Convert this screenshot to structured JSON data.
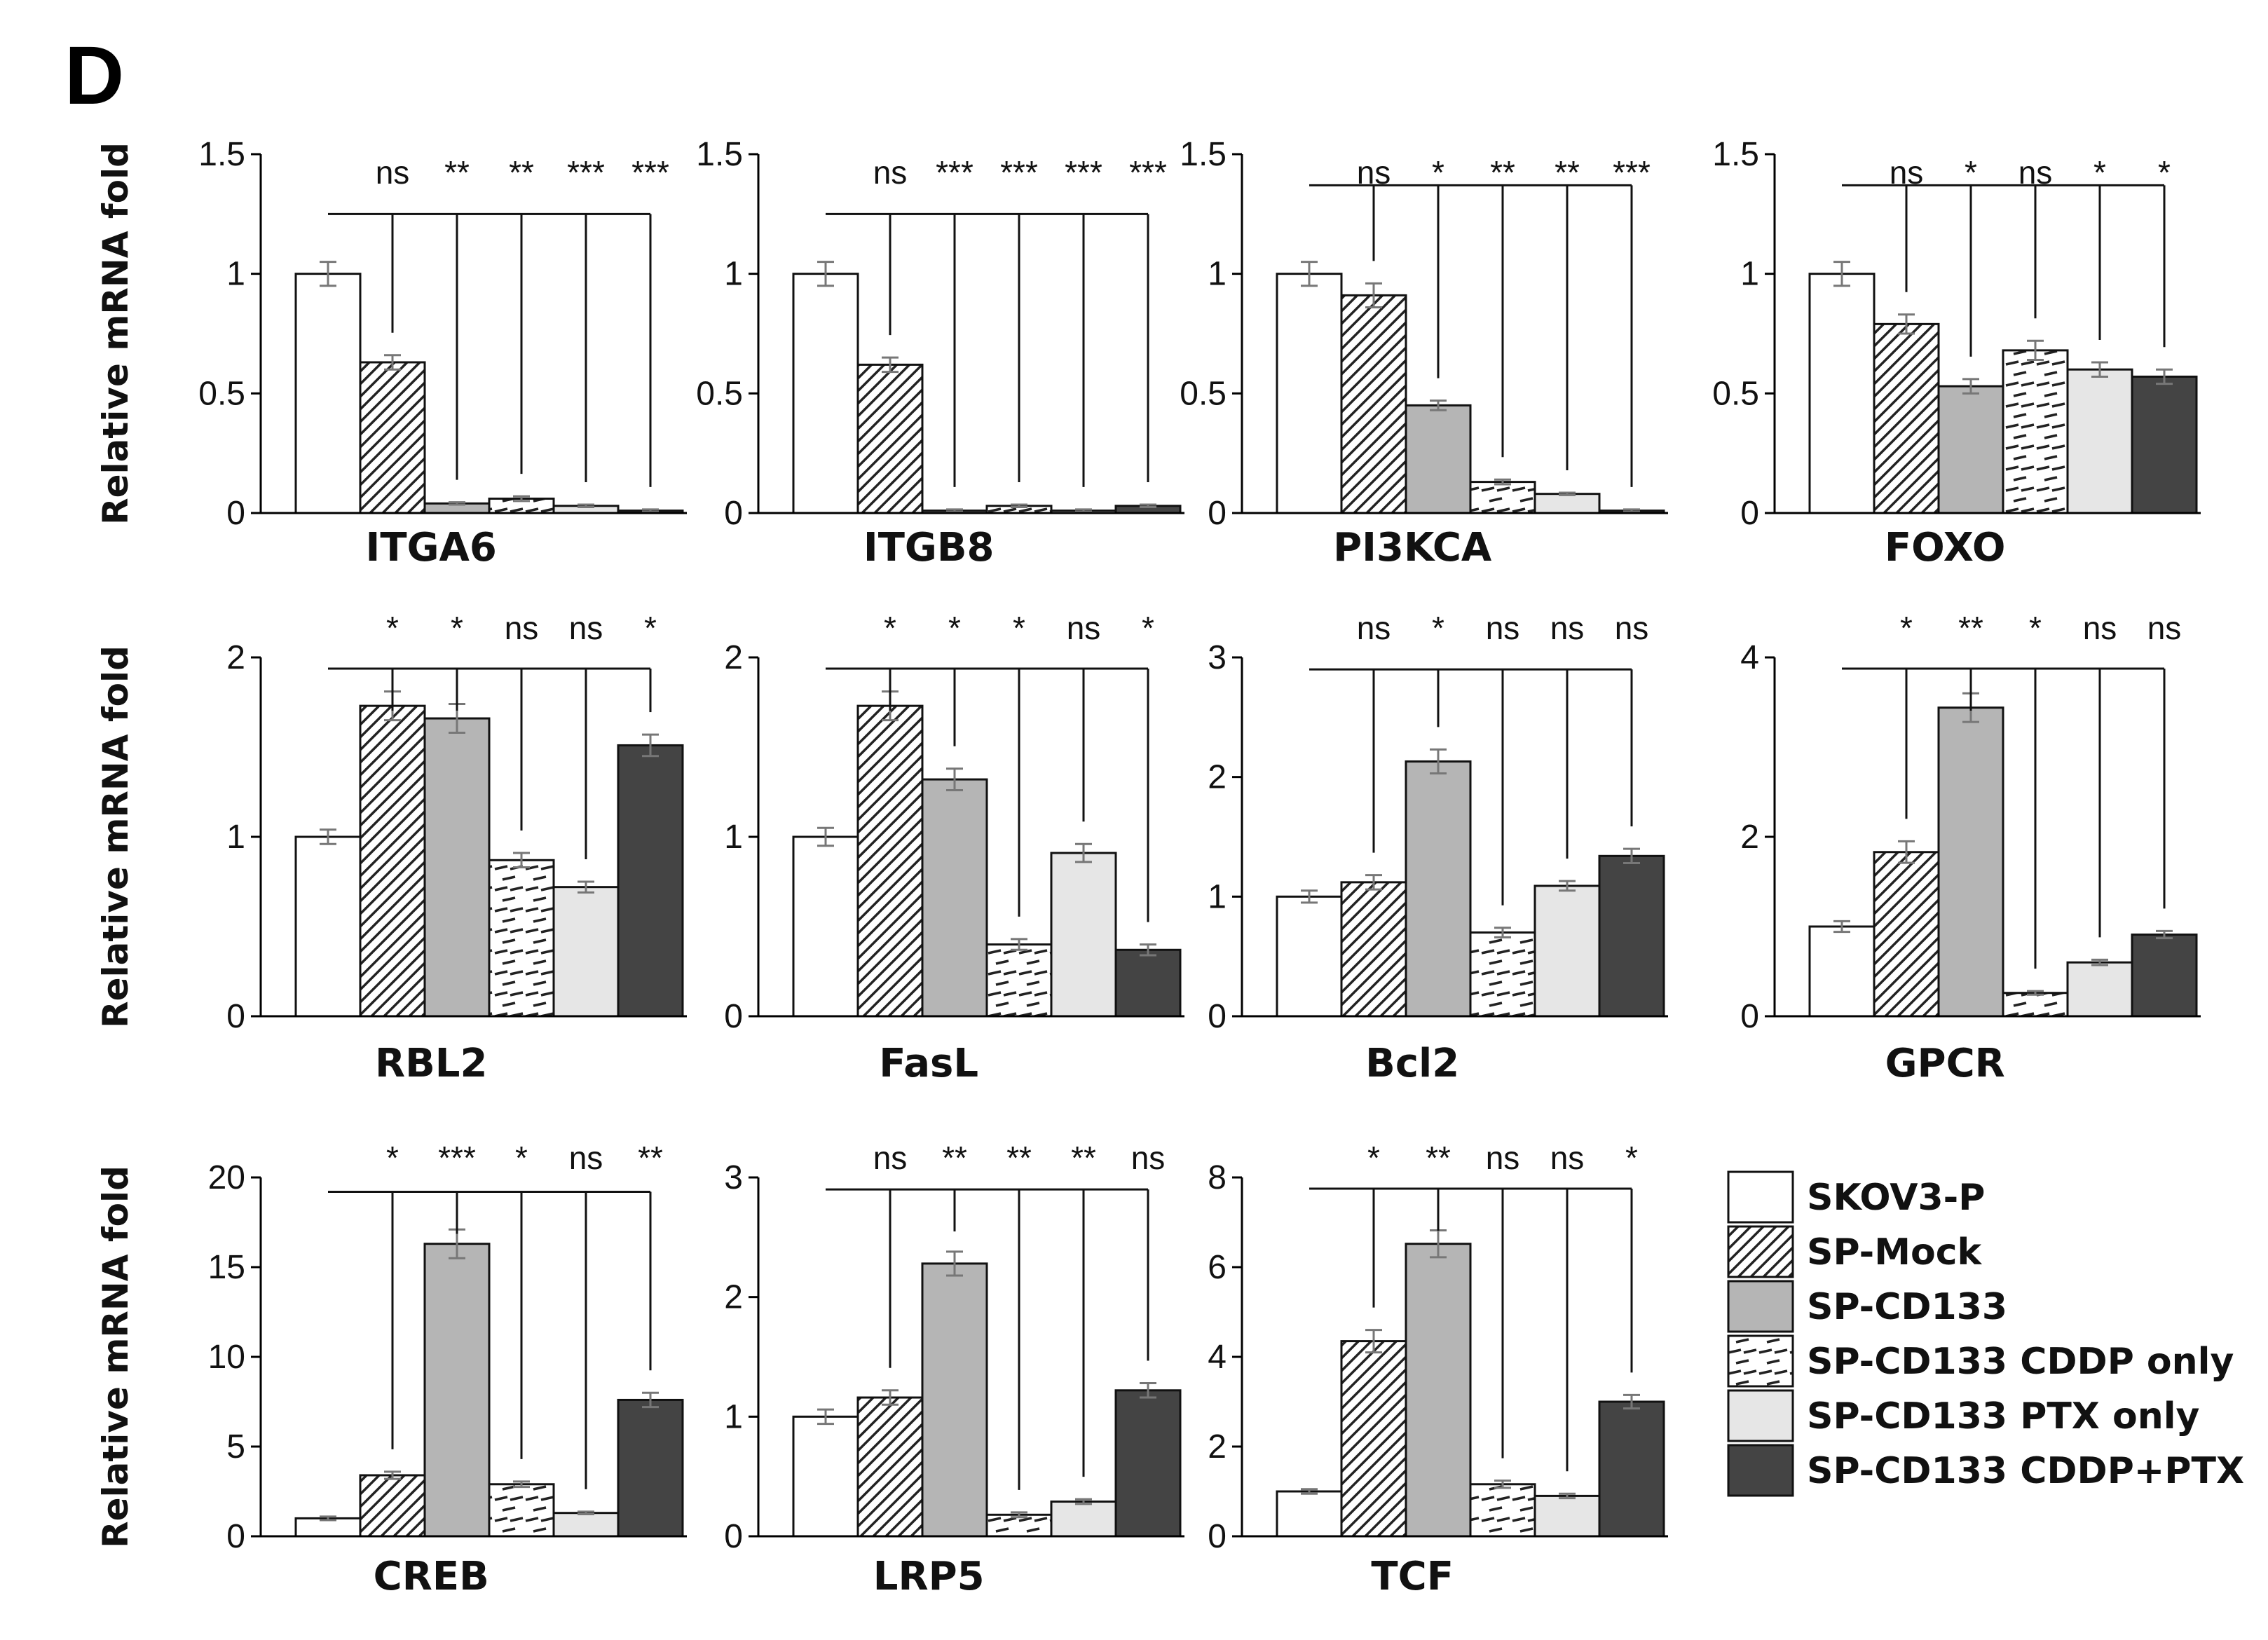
{
  "panel_label": "D",
  "legend": [
    {
      "name": "SKOV3-P",
      "fill": "#ffffff",
      "pattern": "none"
    },
    {
      "name": "SP-Mock",
      "fill": "#ffffff",
      "pattern": "diag"
    },
    {
      "name": "SP-CD133",
      "fill": "#b5b5b5",
      "pattern": "none"
    },
    {
      "name": "SP-CD133 CDDP only",
      "fill": "#ffffff",
      "pattern": "dash"
    },
    {
      "name": "SP-CD133 PTX only",
      "fill": "#e6e6e6",
      "pattern": "none"
    },
    {
      "name": "SP-CD133 CDDP+PTX",
      "fill": "#444444",
      "pattern": "none"
    }
  ],
  "chart_data": [
    {
      "type": "bar",
      "gene": "ITGA6",
      "ylabel": "Relative mRNA fold",
      "ylim": [
        0,
        1.5
      ],
      "yticks": [
        "0",
        "0.5",
        "1",
        "1.5"
      ],
      "tick_values": [
        0,
        0.5,
        1,
        1.5
      ],
      "values": [
        1.0,
        0.63,
        0.04,
        0.06,
        0.03,
        0.01
      ],
      "errors": [
        0.05,
        0.03,
        0.005,
        0.01,
        0.005,
        0.005
      ],
      "significance": [
        "ns",
        "**",
        "**",
        "***",
        "***"
      ],
      "bracket_level": 1.25
    },
    {
      "type": "bar",
      "gene": "ITGB8",
      "ylabel": "",
      "ylim": [
        0,
        1.5
      ],
      "yticks": [
        "0",
        "0.5",
        "1",
        "1.5"
      ],
      "tick_values": [
        0,
        0.5,
        1,
        1.5
      ],
      "values": [
        1.0,
        0.62,
        0.01,
        0.03,
        0.01,
        0.03
      ],
      "errors": [
        0.05,
        0.03,
        0.005,
        0.005,
        0.005,
        0.005
      ],
      "significance": [
        "ns",
        "***",
        "***",
        "***",
        "***"
      ],
      "bracket_level": 1.25
    },
    {
      "type": "bar",
      "gene": "PI3KCA",
      "ylabel": "",
      "ylim": [
        0,
        1.5
      ],
      "yticks": [
        "0",
        "0.5",
        "1",
        "1.5"
      ],
      "tick_values": [
        0,
        0.5,
        1,
        1.5
      ],
      "values": [
        1.0,
        0.91,
        0.45,
        0.13,
        0.08,
        0.01
      ],
      "errors": [
        0.05,
        0.05,
        0.02,
        0.01,
        0.005,
        0.005
      ],
      "significance": [
        "ns",
        "*",
        "**",
        "**",
        "***"
      ],
      "bracket_level": 1.37
    },
    {
      "type": "bar",
      "gene": "FOXO",
      "ylabel": "",
      "ylim": [
        0,
        1.5
      ],
      "yticks": [
        "0",
        "0.5",
        "1",
        "1.5"
      ],
      "tick_values": [
        0,
        0.5,
        1,
        1.5
      ],
      "values": [
        1.0,
        0.79,
        0.53,
        0.68,
        0.6,
        0.57
      ],
      "errors": [
        0.05,
        0.04,
        0.03,
        0.04,
        0.03,
        0.03
      ],
      "significance": [
        "ns",
        "*",
        "ns",
        "*",
        "*"
      ],
      "bracket_level": 1.37
    },
    {
      "type": "bar",
      "gene": "RBL2",
      "ylabel": "Relative mRNA fold",
      "ylim": [
        0,
        2
      ],
      "yticks": [
        "0",
        "1",
        "2"
      ],
      "tick_values": [
        0,
        1,
        2
      ],
      "values": [
        1.0,
        1.73,
        1.66,
        0.87,
        0.72,
        1.51
      ],
      "errors": [
        0.04,
        0.08,
        0.08,
        0.04,
        0.03,
        0.06
      ],
      "significance": [
        "*",
        "*",
        "ns",
        "ns",
        "*"
      ],
      "bracket_level": 2.0
    },
    {
      "type": "bar",
      "gene": "FasL",
      "ylabel": "",
      "ylim": [
        0,
        2
      ],
      "yticks": [
        "0",
        "1",
        "2"
      ],
      "tick_values": [
        0,
        1,
        2
      ],
      "values": [
        1.0,
        1.73,
        1.32,
        0.4,
        0.91,
        0.37
      ],
      "errors": [
        0.05,
        0.08,
        0.06,
        0.03,
        0.05,
        0.03
      ],
      "significance": [
        "*",
        "*",
        "*",
        "ns",
        "*"
      ],
      "bracket_level": 2.0
    },
    {
      "type": "bar",
      "gene": "Bcl2",
      "ylabel": "",
      "ylim": [
        0,
        3
      ],
      "yticks": [
        "0",
        "1",
        "2",
        "3"
      ],
      "tick_values": [
        0,
        1,
        2,
        3
      ],
      "values": [
        1.0,
        1.12,
        2.13,
        0.7,
        1.09,
        1.34
      ],
      "errors": [
        0.05,
        0.06,
        0.1,
        0.04,
        0.04,
        0.06
      ],
      "significance": [
        "ns",
        "*",
        "ns",
        "ns",
        "ns"
      ],
      "bracket_level": 2.9
    },
    {
      "type": "bar",
      "gene": "GPCR",
      "ylabel": "",
      "ylim": [
        0,
        4
      ],
      "yticks": [
        "0",
        "2",
        "4"
      ],
      "tick_values": [
        0,
        2,
        4
      ],
      "values": [
        1.0,
        1.83,
        3.44,
        0.26,
        0.6,
        0.91
      ],
      "errors": [
        0.06,
        0.12,
        0.16,
        0.02,
        0.03,
        0.04
      ],
      "significance": [
        "*",
        "**",
        "*",
        "ns",
        "ns"
      ],
      "bracket_level": 4.0
    },
    {
      "type": "bar",
      "gene": "CREB",
      "ylabel": "Relative mRNA fold",
      "ylim": [
        0,
        20
      ],
      "yticks": [
        "0",
        "5",
        "10",
        "15",
        "20"
      ],
      "tick_values": [
        0,
        5,
        10,
        15,
        20
      ],
      "values": [
        1.0,
        3.4,
        16.3,
        2.9,
        1.3,
        7.6
      ],
      "errors": [
        0.1,
        0.2,
        0.8,
        0.15,
        0.07,
        0.4
      ],
      "significance": [
        "*",
        "***",
        "*",
        "ns",
        "**"
      ],
      "bracket_level": 19.2
    },
    {
      "type": "bar",
      "gene": "LRP5",
      "ylabel": "",
      "ylim": [
        0,
        3
      ],
      "yticks": [
        "0",
        "1",
        "2",
        "3"
      ],
      "tick_values": [
        0,
        1,
        2,
        3
      ],
      "values": [
        1.0,
        1.16,
        2.28,
        0.18,
        0.29,
        1.22
      ],
      "errors": [
        0.06,
        0.06,
        0.1,
        0.02,
        0.02,
        0.06
      ],
      "significance": [
        "ns",
        "**",
        "**",
        "**",
        "ns"
      ],
      "bracket_level": 2.9
    },
    {
      "type": "bar",
      "gene": "TCF",
      "ylabel": "",
      "ylim": [
        0,
        8
      ],
      "yticks": [
        "0",
        "2",
        "4",
        "6",
        "8"
      ],
      "tick_values": [
        0,
        2,
        4,
        6,
        8
      ],
      "values": [
        1.0,
        4.35,
        6.52,
        1.16,
        0.9,
        3.0
      ],
      "errors": [
        0.05,
        0.25,
        0.3,
        0.08,
        0.05,
        0.15
      ],
      "significance": [
        "*",
        "**",
        "ns",
        "ns",
        "*"
      ],
      "bracket_level": 7.9
    }
  ]
}
